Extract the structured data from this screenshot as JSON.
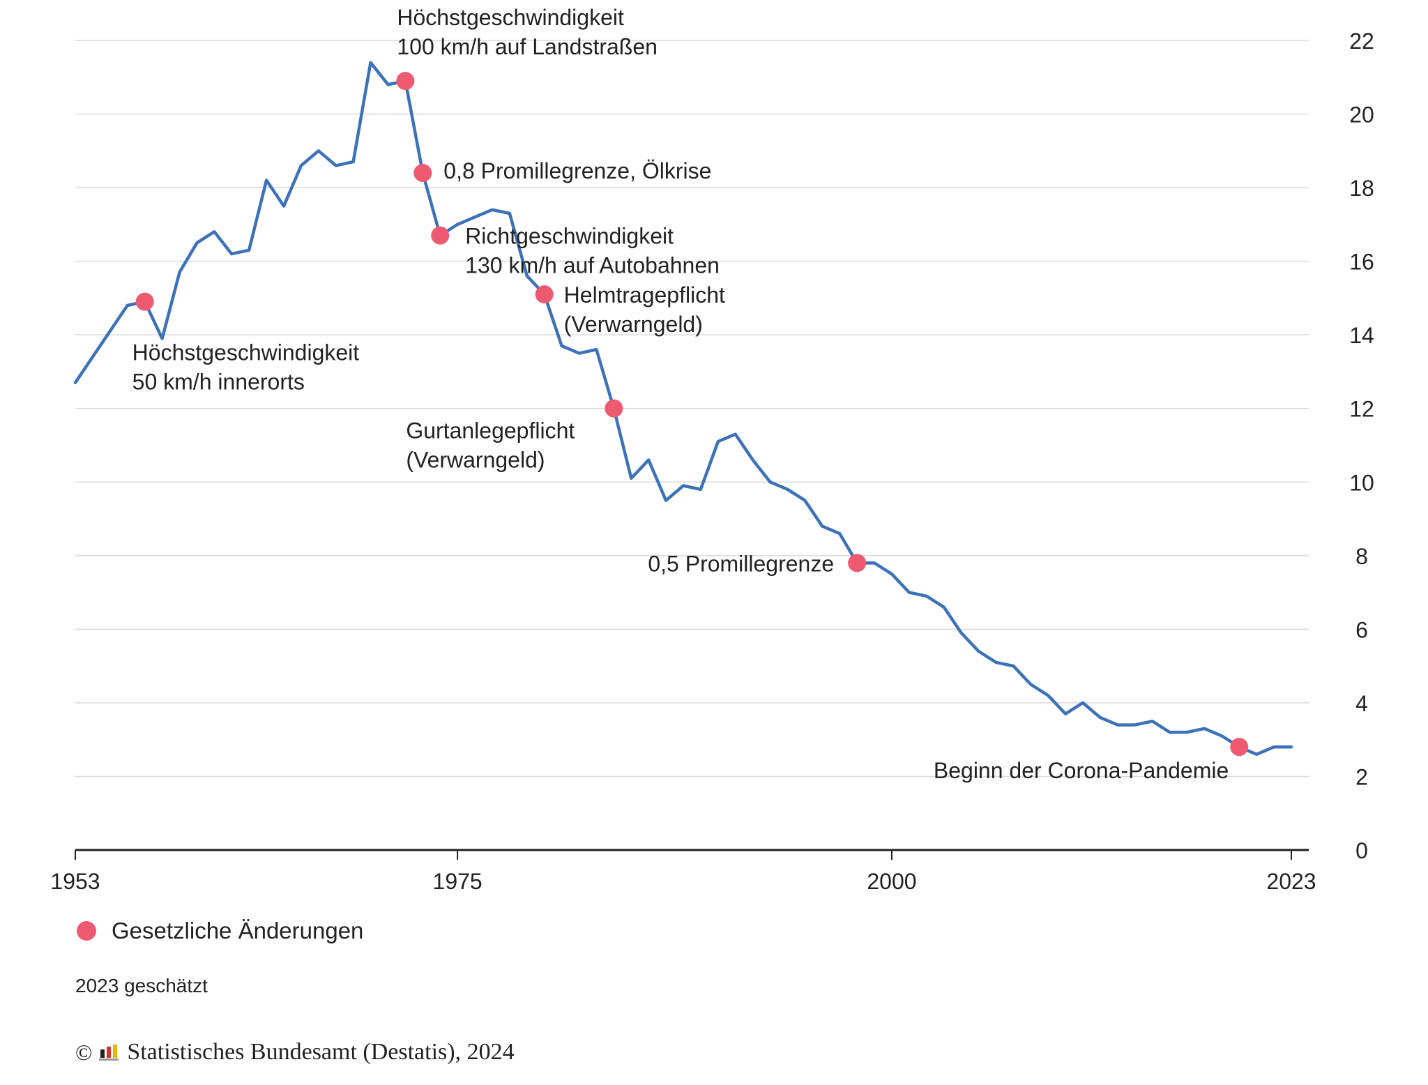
{
  "chart_data": {
    "type": "line",
    "x": [
      1953,
      1954,
      1955,
      1956,
      1957,
      1958,
      1959,
      1960,
      1961,
      1962,
      1963,
      1964,
      1965,
      1966,
      1967,
      1968,
      1969,
      1970,
      1971,
      1972,
      1973,
      1974,
      1975,
      1976,
      1977,
      1978,
      1979,
      1980,
      1981,
      1982,
      1983,
      1984,
      1985,
      1986,
      1987,
      1988,
      1989,
      1990,
      1991,
      1992,
      1993,
      1994,
      1995,
      1996,
      1997,
      1998,
      1999,
      2000,
      2001,
      2002,
      2003,
      2004,
      2005,
      2006,
      2007,
      2008,
      2009,
      2010,
      2011,
      2012,
      2013,
      2014,
      2015,
      2016,
      2017,
      2018,
      2019,
      2020,
      2021,
      2022,
      2023
    ],
    "series": [
      {
        "values": [
          12.7,
          13.4,
          14.1,
          14.8,
          14.9,
          13.9,
          15.7,
          16.5,
          16.8,
          16.2,
          16.3,
          18.2,
          17.5,
          18.6,
          19.0,
          18.6,
          18.7,
          21.4,
          20.8,
          20.9,
          18.4,
          16.7,
          17.0,
          17.2,
          17.4,
          17.3,
          15.6,
          15.1,
          13.7,
          13.5,
          13.6,
          12.0,
          10.1,
          10.6,
          9.5,
          9.9,
          9.8,
          11.1,
          11.3,
          10.6,
          10.0,
          9.8,
          9.5,
          8.8,
          8.6,
          7.8,
          7.8,
          7.5,
          7.0,
          6.9,
          6.6,
          5.9,
          5.4,
          5.1,
          5.0,
          4.5,
          4.2,
          3.7,
          4.0,
          3.6,
          3.4,
          3.4,
          3.5,
          3.2,
          3.2,
          3.3,
          3.1,
          2.8,
          2.6,
          2.8,
          2.8
        ]
      }
    ],
    "events": [
      {
        "year": 1957,
        "value": 14.9,
        "lines": [
          "Höchstgeschwindigkeit",
          "50 km/h innerorts"
        ]
      },
      {
        "year": 1972,
        "value": 20.9,
        "lines": [
          "Höchstgeschwindigkeit",
          "100 km/h auf Landstraßen"
        ]
      },
      {
        "year": 1973,
        "value": 18.4,
        "lines": [
          "0,8 Promillegrenze, Ölkrise"
        ]
      },
      {
        "year": 1974,
        "value": 16.7,
        "lines": [
          "Richtgeschwindigkeit",
          "130 km/h auf Autobahnen"
        ]
      },
      {
        "year": 1980,
        "value": 15.1,
        "lines": [
          "Helmtragepflicht",
          "(Verwarngeld)"
        ]
      },
      {
        "year": 1984,
        "value": 12.0,
        "lines": [
          "Gurtanlegepflicht",
          "(Verwarngeld)"
        ]
      },
      {
        "year": 1998,
        "value": 7.8,
        "lines": [
          "0,5 Promillegrenze"
        ]
      },
      {
        "year": 2020,
        "value": 2.8,
        "lines": [
          "Beginn der Corona-Pandemie"
        ]
      }
    ],
    "xticks": [
      1953,
      1975,
      2000,
      2023
    ],
    "yticks": [
      0,
      2,
      4,
      6,
      8,
      10,
      12,
      14,
      16,
      18,
      20,
      22
    ],
    "xlim": [
      1953,
      2023
    ],
    "ylim": [
      0,
      22
    ],
    "grid": true,
    "y_axis_side": "right",
    "colors": {
      "line": "#3d72b8",
      "marker": "#ee5b71",
      "grid": "#d9d9d9",
      "axis": "#222222"
    }
  },
  "legend": {
    "label": "Gesetzliche Änderungen"
  },
  "note": "2023 geschätzt",
  "source": {
    "copyright": "©",
    "text": "Statistisches Bundesamt (Destatis), 2024"
  }
}
